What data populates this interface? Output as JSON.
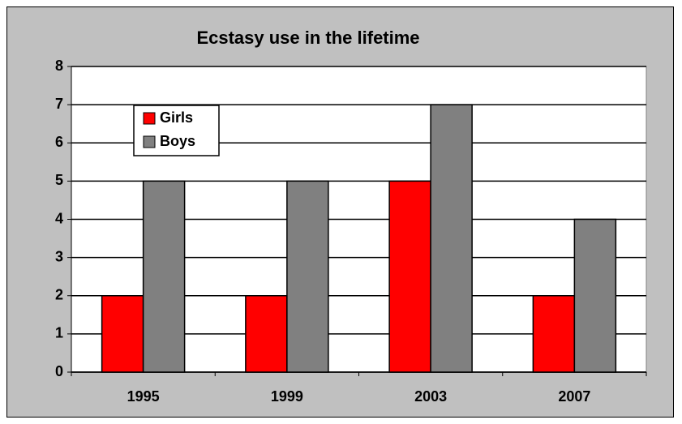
{
  "chart_data": {
    "type": "bar",
    "title": "Ecstasy use in the lifetime",
    "categories": [
      "1995",
      "1999",
      "2003",
      "2007"
    ],
    "series": [
      {
        "name": "Girls",
        "color": "#ff0000",
        "values": [
          2,
          2,
          5,
          2
        ]
      },
      {
        "name": "Boys",
        "color": "#808080",
        "values": [
          5,
          5,
          7,
          4
        ]
      }
    ],
    "ylim": [
      0,
      8
    ],
    "yticks": [
      0,
      1,
      2,
      3,
      4,
      5,
      6,
      7,
      8
    ],
    "grid": true,
    "legend": "upper left"
  }
}
